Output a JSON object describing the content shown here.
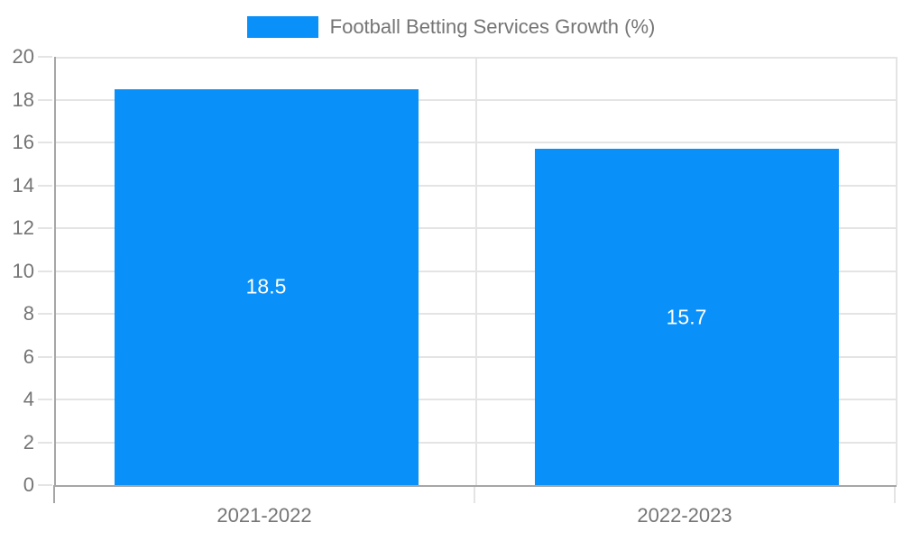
{
  "legend": {
    "label": "Football Betting Services Growth (%)"
  },
  "chart_data": {
    "type": "bar",
    "title": "Football Betting Services Growth (%)",
    "categories": [
      "2021-2022",
      "2022-2023"
    ],
    "values": [
      18.5,
      15.7
    ],
    "data_labels": [
      "18.5",
      "15.7"
    ],
    "series": [
      {
        "name": "Football Betting Services Growth (%)",
        "values": [
          18.5,
          15.7
        ]
      }
    ],
    "xlabel": "",
    "ylabel": "",
    "ylim": [
      0,
      20
    ],
    "yticks": [
      0,
      2,
      4,
      6,
      8,
      10,
      12,
      14,
      16,
      18,
      20
    ],
    "ytick_labels": [
      "0",
      "2",
      "4",
      "6",
      "8",
      "10",
      "12",
      "14",
      "16",
      "18",
      "20"
    ],
    "grid": true,
    "legend_position": "top",
    "colors": {
      "bar": "#0990f9",
      "grid": "#e4e4e4",
      "axis": "#a6a6a6",
      "tick_text": "#757575",
      "data_label_text": "#ffffff",
      "background": "#ffffff"
    }
  }
}
